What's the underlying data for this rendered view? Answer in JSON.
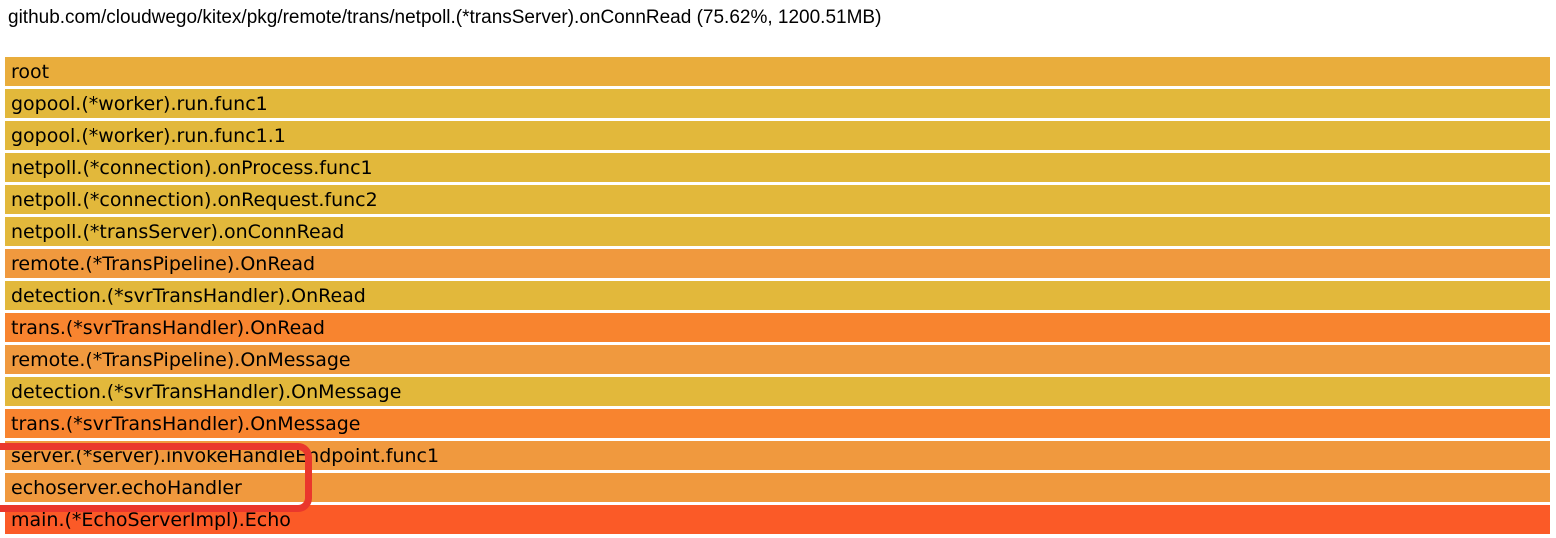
{
  "header": {
    "title": "github.com/cloudwego/kitex/pkg/remote/trans/netpoll.(*transServer).onConnRead (75.62%, 1200.51MB)"
  },
  "colors": {
    "background": "#ffffff",
    "text": "#000000",
    "annotation_red": "#ea372c",
    "gold": "#e2b83b",
    "root_gold": "#e9ad3c",
    "orange": "#f0993e",
    "deep_orange": "#f8842f",
    "red_orange": "#fb5a27"
  },
  "annotation": {
    "type": "highlight-box",
    "rows_enclosed": [
      "server.(*server).invokeHandleEndpoint.func1",
      "echoserver.echoHandler"
    ]
  },
  "chart_data": {
    "type": "flamegraph",
    "title": "github.com/cloudwego/kitex/pkg/remote/trans/netpoll.(*transServer).onConnRead (75.62%, 1200.51MB)",
    "orientation": "top-down",
    "selected_frame": {
      "name": "netpoll.(*transServer).onConnRead",
      "percent": "75.62%",
      "value": "1200.51MB"
    },
    "frames": [
      {
        "name": "root",
        "color": "#e9ad3c",
        "width_percent": 100
      },
      {
        "name": "gopool.(*worker).run.func1",
        "color": "#e2b83b",
        "width_percent": 100
      },
      {
        "name": "gopool.(*worker).run.func1.1",
        "color": "#e2b83b",
        "width_percent": 100
      },
      {
        "name": "netpoll.(*connection).onProcess.func1",
        "color": "#e2b83b",
        "width_percent": 100
      },
      {
        "name": "netpoll.(*connection).onRequest.func2",
        "color": "#e2b83b",
        "width_percent": 100
      },
      {
        "name": "netpoll.(*transServer).onConnRead",
        "color": "#e2b83b",
        "width_percent": 100
      },
      {
        "name": "remote.(*TransPipeline).OnRead",
        "color": "#f0993e",
        "width_percent": 100
      },
      {
        "name": "detection.(*svrTransHandler).OnRead",
        "color": "#e2b83b",
        "width_percent": 100
      },
      {
        "name": "trans.(*svrTransHandler).OnRead",
        "color": "#f8842f",
        "width_percent": 100
      },
      {
        "name": "remote.(*TransPipeline).OnMessage",
        "color": "#f0993e",
        "width_percent": 100
      },
      {
        "name": "detection.(*svrTransHandler).OnMessage",
        "color": "#e2b83b",
        "width_percent": 100
      },
      {
        "name": "trans.(*svrTransHandler).OnMessage",
        "color": "#f8842f",
        "width_percent": 100
      },
      {
        "name": "server.(*server).invokeHandleEndpoint.func1",
        "color": "#f0993e",
        "width_percent": 100
      },
      {
        "name": "echoserver.echoHandler",
        "color": "#f0993e",
        "width_percent": 100
      },
      {
        "name": "main.(*EchoServerImpl).Echo",
        "color": "#fb5a27",
        "width_percent": 100
      }
    ]
  }
}
